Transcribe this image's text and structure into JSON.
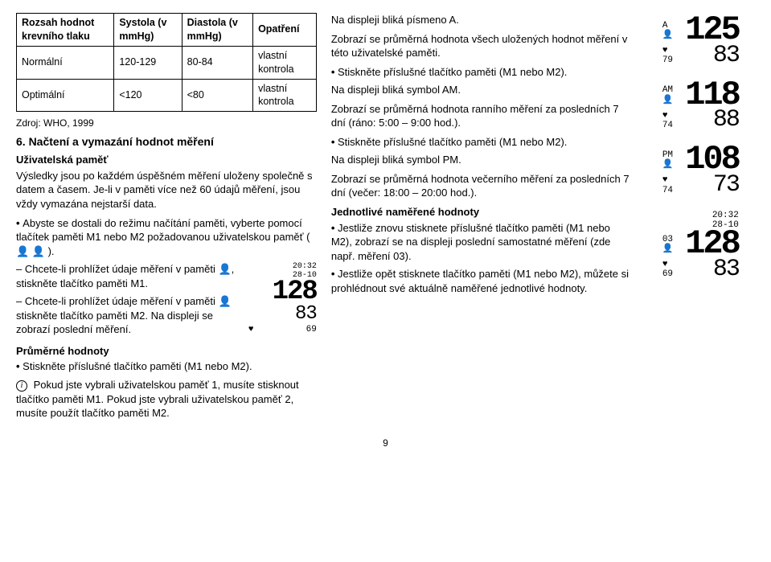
{
  "table": {
    "headers": [
      "Rozsah hodnot krevního tlaku",
      "Systola (v mmHg)",
      "Diastola (v mmHg)",
      "Opatření"
    ],
    "rows": [
      [
        "Normální",
        "120-129",
        "80-84",
        "vlastní kontrola"
      ],
      [
        "Optimální",
        "<120",
        "<80",
        "vlastní kontrola"
      ]
    ],
    "border_color": "#000000",
    "font_size": 12.5
  },
  "source": "Zdroj: WHO, 1999",
  "section6_title": "6. Načtení a vymazání hodnot měření",
  "user_memory_h": "Uživatelská paměť",
  "user_memory_p": "Výsledky jsou po každém úspěšném měření uloženy společně s datem a časem. Je-li v paměti více než 60 údajů měření, jsou vždy vymazána nejstarší data.",
  "bullets_left": [
    "Abyste se dostali do režimu načítání paměti, vyberte pomocí tlačítek paměti M1 nebo M2 požadovanou uživatelskou paměť ( 👤  👤 )."
  ],
  "dashes_left": [
    "Chcete-li prohlížet údaje měření v paměti 👤, stiskněte tlačítko paměti M1.",
    "Chcete-li prohlížet údaje měření v paměti 👤 stiskněte tlačítko paměti M2. Na displeji se zobrazí poslední měření."
  ],
  "avg_h": "Průměrné hodnoty",
  "avg_bullets": [
    "Stiskněte příslušné tlačítko paměti (M1 nebo M2)."
  ],
  "info_p": "Pokud jste vybrali uživatelskou paměť 1, musíte stisknout tlačítko paměti M1. Pokud jste vybrali uživatelskou paměť 2, musíte použít tlačítko paměti M2.",
  "mini_display": {
    "time": "20:32",
    "date": "28-10",
    "sys": "128",
    "dia": "83",
    "pulse_label": "69",
    "heart": "♥"
  },
  "mid_p1": "Na displeji bliká písmeno A.",
  "mid_p2": "Zobrazí se průměrná hodnota všech uložených hodnot měření v této uživatelské paměti.",
  "mid_b1": "Stiskněte příslušné tlačítko paměti (M1 nebo M2).",
  "mid_p3": "Na displeji bliká symbol AM.",
  "mid_p4": "Zobrazí se průměrná hodnota ranního měření za posledních 7 dní (ráno: 5:00 – 9:00 hod.).",
  "mid_b2": "Stiskněte příslušné tlačítko paměti (M1 nebo M2).",
  "mid_p5": "Na displeji bliká symbol PM.",
  "mid_p6": "Zobrazí se průměrná hodnota večerního měření za posledních 7 dní (večer: 18:00 – 20:00 hod.).",
  "single_h": "Jednotlivé naměřené hodnoty",
  "single_b1": "Jestliže znovu stisknete příslušné tlačítko paměti (M1 nebo M2), zobrazí se na displeji poslední samostatné měření (zde např. měření 03).",
  "single_b2": "Jestliže opět stisknete tlačítko paměti (M1 nebo M2), můžete si prohlédnout své aktuálně naměřené jednotlivé hodnoty.",
  "lcd1": {
    "sys": "125",
    "dia": "83",
    "pulse": "79",
    "icons": {
      "mode": "A",
      "person": "👤",
      "heart": "♥"
    }
  },
  "lcd2": {
    "sys": "118",
    "dia": "88",
    "pulse": "74",
    "icons": {
      "mode": "AM",
      "person": "👤",
      "heart": "♥"
    }
  },
  "lcd3": {
    "sys": "108",
    "dia": "73",
    "pulse": "74",
    "icons": {
      "mode": "PM",
      "person": "👤",
      "heart": "♥"
    }
  },
  "lcd4": {
    "time": "20:32",
    "date": "28-10",
    "sys": "128",
    "dia": "83",
    "pulse": "69",
    "icons": {
      "mode": "03",
      "person": "👤",
      "heart": "♥"
    }
  },
  "page_number": "9",
  "colors": {
    "text": "#000000",
    "background": "#ffffff"
  }
}
